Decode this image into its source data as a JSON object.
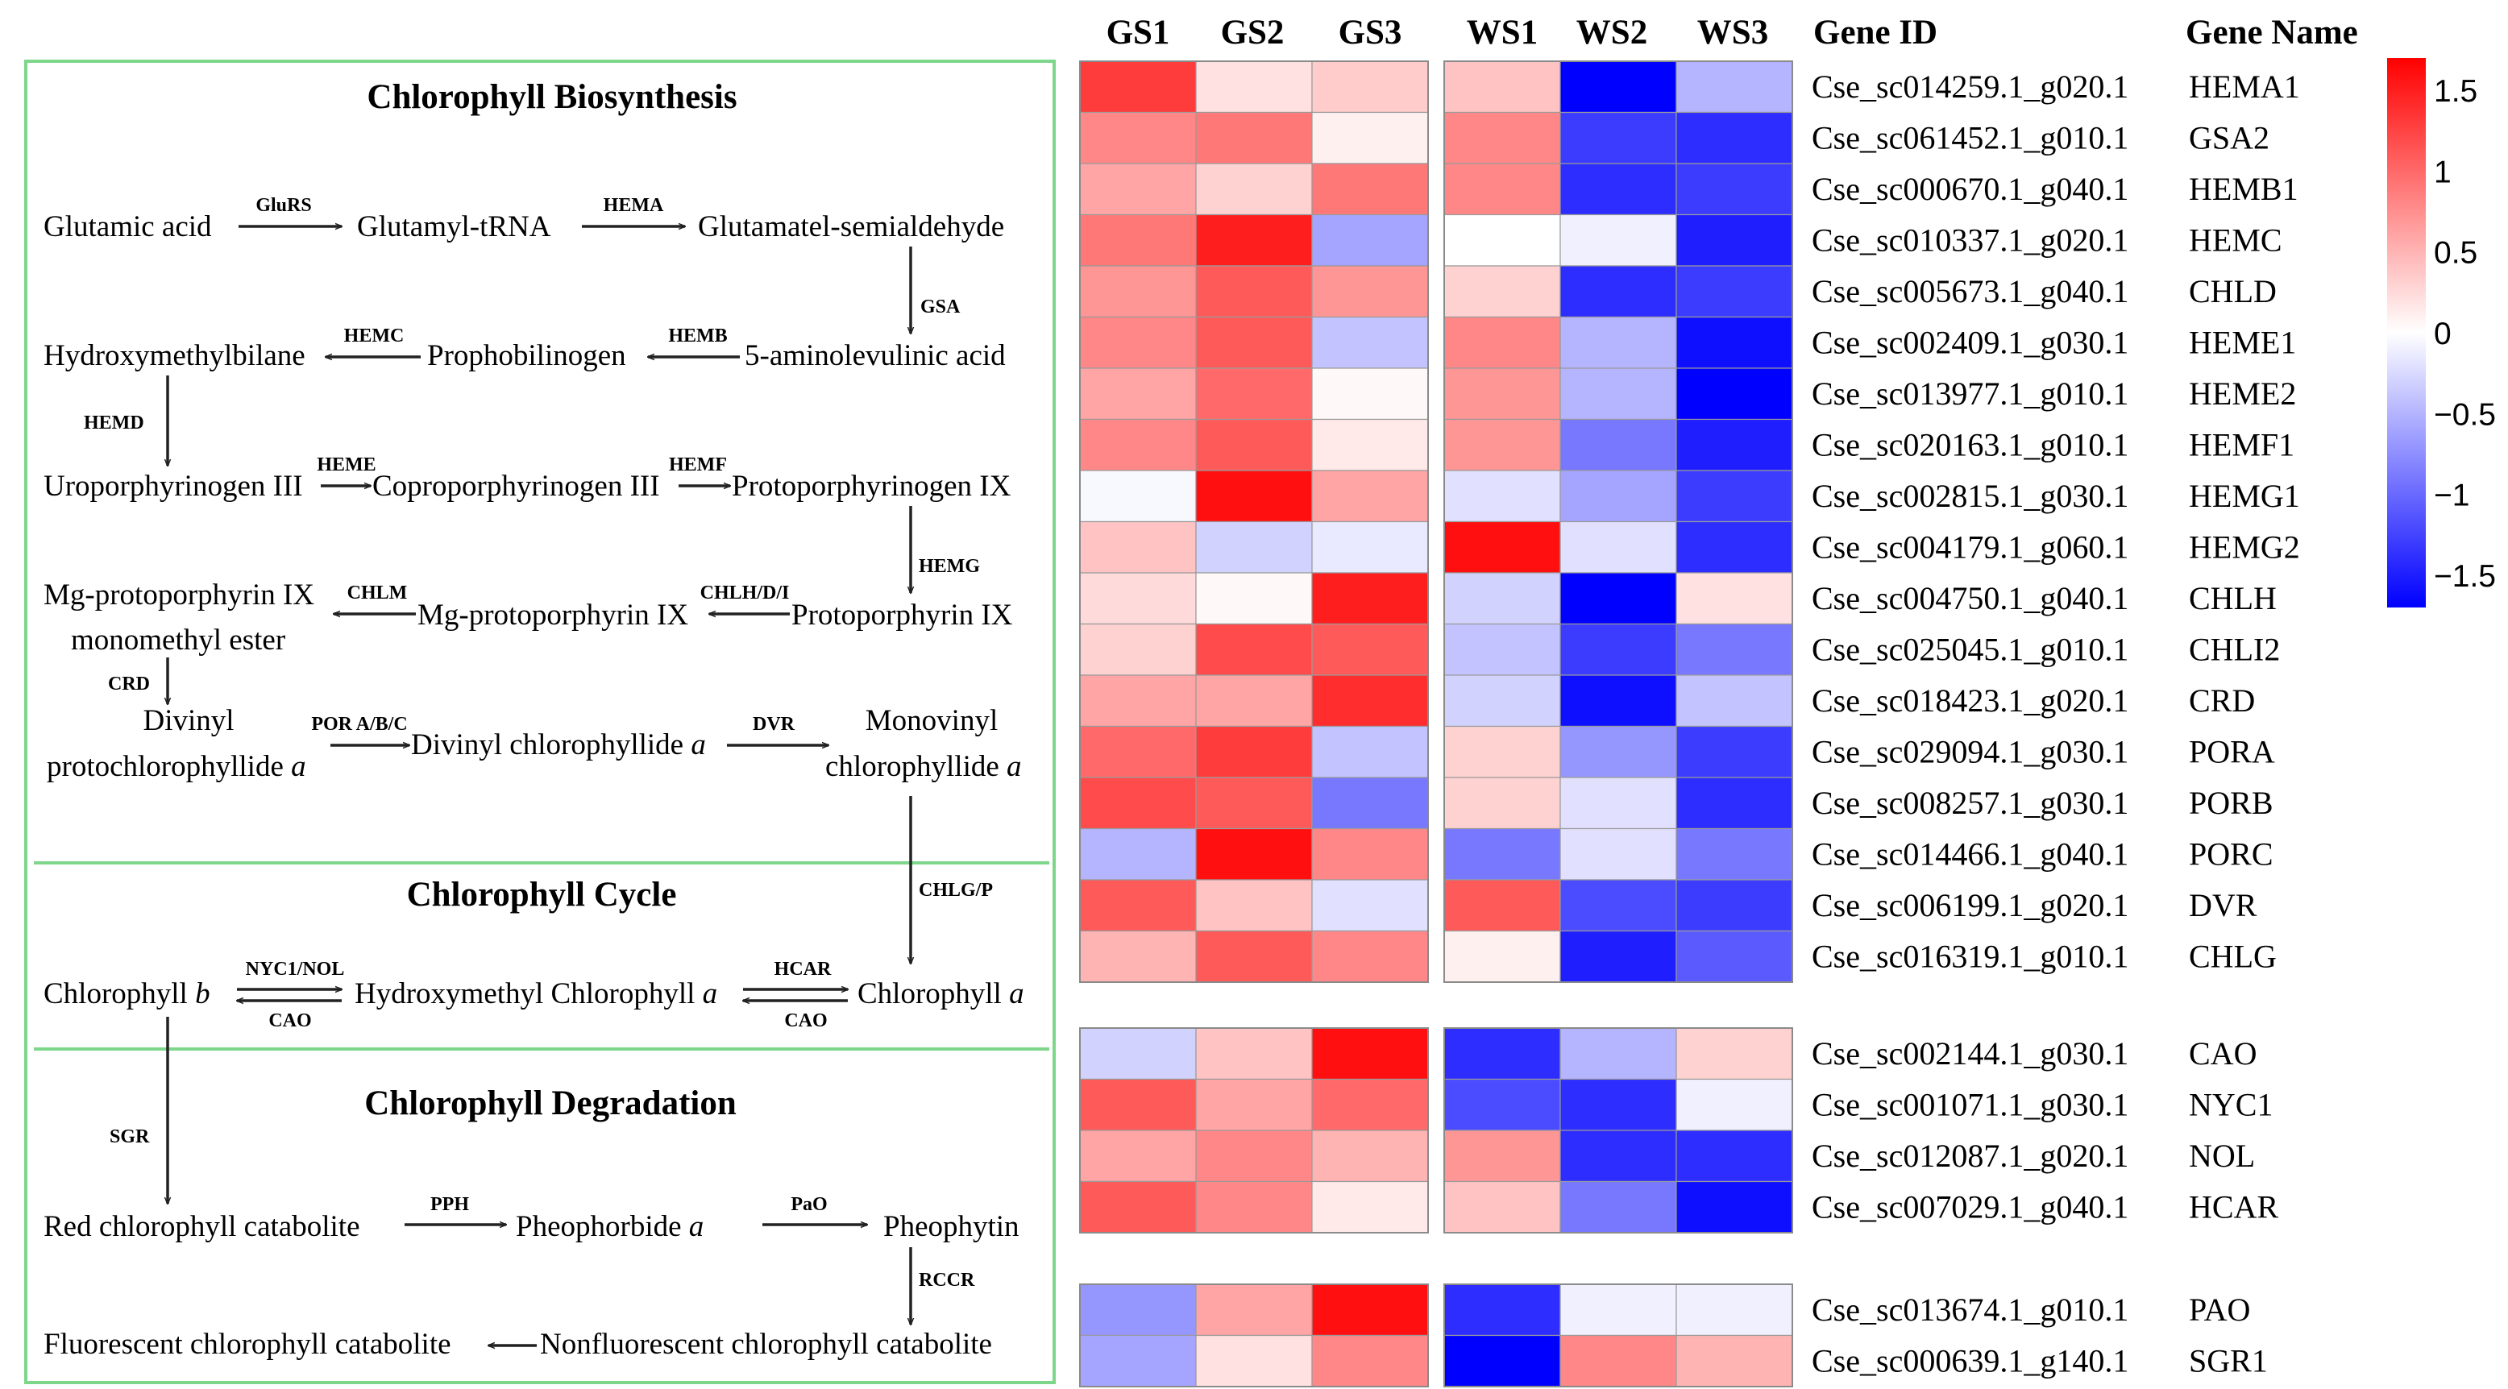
{
  "colors": {
    "high": "#ff0000",
    "mid": "#ffffff",
    "low": "#0000ff",
    "frame": "#7ed68a"
  },
  "pathway": {
    "sections": {
      "biosynthesis": "Chlorophyll Biosynthesis",
      "cycle": "Chlorophyll Cycle",
      "degradation": "Chlorophyll Degradation"
    },
    "nodes": {
      "glutamic_acid": "Glutamic acid",
      "glutamyl_trna": "Glutamyl-tRNA",
      "glutamate_semialdehyde": "Glutamatel-semialdehyde",
      "ala": "5-aminolevulinic acid",
      "prophobilinogen": "Prophobilinogen",
      "hydroxymethylbilane": "Hydroxymethylbilane",
      "uroporphyrinogen": "Uroporphyrinogen III",
      "coproporphyrinogen": "Coproporphyrinogen III",
      "protoporphyrinogen": "Protoporphyrinogen IX",
      "protoporphyrin": "Protoporphyrin IX",
      "mg_protoporphyrin": "Mg-protoporphyrin IX",
      "mg_ester_1": "Mg-protoporphyrin IX",
      "mg_ester_2": "monomethyl ester",
      "divinyl_pchl_1": "Divinyl",
      "divinyl_pchl_2": "protochlorophyllide",
      "italic_a": "a",
      "divinyl_chlide": "Divinyl chlorophyllide ",
      "monovinyl_1": "Monovinyl",
      "monovinyl_2": "chlorophyllide ",
      "chl_b": "Chlorophyll ",
      "italic_b": "b",
      "hydroxymethyl_chl": "Hydroxymethyl Chlorophyll ",
      "chl_a": "Chlorophyll ",
      "rcc": "Red chlorophyll catabolite",
      "pheophorbide": "Pheophorbide ",
      "pheophytin": "Pheophytin",
      "fcc": "Fluorescent chlorophyll catabolite",
      "ncc": "Nonfluorescent chlorophyll catabolite"
    },
    "enzymes": {
      "glurs": "GluRS",
      "hema": "HEMA",
      "gsa": "GSA",
      "hemb": "HEMB",
      "hemc": "HEMC",
      "hemd": "HEMD",
      "heme": "HEME",
      "hemf": "HEMF",
      "hemg": "HEMG",
      "chlhdi": "CHLH/D/I",
      "chlm": "CHLM",
      "crd": "CRD",
      "por": "POR A/B/C",
      "dvr": "DVR",
      "chlgp": "CHLG/P",
      "nyc1nol": "NYC1/NOL",
      "cao": "CAO",
      "hcar": "HCAR",
      "cao2": "CAO",
      "sgr": "SGR",
      "pph": "PPH",
      "pao": "PaO",
      "rccr": "RCCR"
    }
  },
  "heatmap": {
    "groups_left": [
      "GS1",
      "GS2",
      "GS3"
    ],
    "groups_right": [
      "WS1",
      "WS2",
      "WS3"
    ],
    "header_gene_id": "Gene ID",
    "header_gene_name": "Gene Name",
    "scale_min": -1.7,
    "scale_max": 1.7,
    "blocks": [
      {
        "rows": [
          {
            "gene_id": "Cse_sc014259.1_g020.1",
            "gene_name": "HEMA1",
            "values": [
              1.3,
              0.2,
              0.35,
              0.4,
              -1.7,
              -0.5
            ]
          },
          {
            "gene_id": "Cse_sc061452.1_g010.1",
            "gene_name": "GSA2",
            "values": [
              0.8,
              0.9,
              0.1,
              0.8,
              -1.3,
              -1.4
            ]
          },
          {
            "gene_id": "Cse_sc000670.1_g040.1",
            "gene_name": "HEMB1",
            "values": [
              0.6,
              0.3,
              0.9,
              0.8,
              -1.4,
              -1.3
            ]
          },
          {
            "gene_id": "Cse_sc010337.1_g020.1",
            "gene_name": "HEMC",
            "values": [
              0.9,
              1.5,
              -0.6,
              0.0,
              -0.1,
              -1.5
            ]
          },
          {
            "gene_id": "Cse_sc005673.1_g040.1",
            "gene_name": "CHLD",
            "values": [
              0.7,
              1.1,
              0.7,
              0.3,
              -1.4,
              -1.3
            ]
          },
          {
            "gene_id": "Cse_sc002409.1_g030.1",
            "gene_name": "HEME1",
            "values": [
              0.8,
              1.1,
              -0.4,
              0.8,
              -0.5,
              -1.6
            ]
          },
          {
            "gene_id": "Cse_sc013977.1_g010.1",
            "gene_name": "HEME2",
            "values": [
              0.6,
              1.0,
              0.05,
              0.7,
              -0.5,
              -1.7
            ]
          },
          {
            "gene_id": "Cse_sc020163.1_g010.1",
            "gene_name": "HEMF1",
            "values": [
              0.8,
              1.1,
              0.15,
              0.7,
              -0.9,
              -1.5
            ]
          },
          {
            "gene_id": "Cse_sc002815.1_g030.1",
            "gene_name": "HEMG1",
            "values": [
              -0.05,
              1.6,
              0.6,
              -0.2,
              -0.6,
              -1.3
            ]
          },
          {
            "gene_id": "Cse_sc004179.1_g060.1",
            "gene_name": "HEMG2",
            "values": [
              0.4,
              -0.3,
              -0.15,
              1.6,
              -0.2,
              -1.4
            ]
          },
          {
            "gene_id": "Cse_sc004750.1_g040.1",
            "gene_name": "CHLH",
            "values": [
              0.25,
              0.05,
              1.5,
              -0.3,
              -1.7,
              0.2
            ]
          },
          {
            "gene_id": "Cse_sc025045.1_g010.1",
            "gene_name": "CHLI2",
            "values": [
              0.3,
              1.2,
              1.1,
              -0.4,
              -1.3,
              -0.9
            ]
          },
          {
            "gene_id": "Cse_sc018423.1_g020.1",
            "gene_name": "CRD",
            "values": [
              0.6,
              0.6,
              1.4,
              -0.3,
              -1.6,
              -0.4
            ]
          },
          {
            "gene_id": "Cse_sc029094.1_g030.1",
            "gene_name": "PORA",
            "values": [
              1.0,
              1.3,
              -0.4,
              0.3,
              -0.7,
              -1.3
            ]
          },
          {
            "gene_id": "Cse_sc008257.1_g030.1",
            "gene_name": "PORB",
            "values": [
              1.2,
              1.1,
              -0.9,
              0.3,
              -0.2,
              -1.4
            ]
          },
          {
            "gene_id": "Cse_sc014466.1_g040.1",
            "gene_name": "PORC",
            "values": [
              -0.5,
              1.6,
              0.8,
              -0.9,
              -0.2,
              -0.9
            ]
          },
          {
            "gene_id": "Cse_sc006199.1_g020.1",
            "gene_name": "DVR",
            "values": [
              1.1,
              0.4,
              -0.2,
              1.1,
              -1.2,
              -1.3
            ]
          },
          {
            "gene_id": "Cse_sc016319.1_g010.1",
            "gene_name": "CHLG",
            "values": [
              0.5,
              1.1,
              0.8,
              0.1,
              -1.5,
              -1.1
            ]
          }
        ]
      },
      {
        "rows": [
          {
            "gene_id": "Cse_sc002144.1_g030.1",
            "gene_name": "CAO",
            "values": [
              -0.3,
              0.4,
              1.6,
              -1.4,
              -0.5,
              0.3
            ]
          },
          {
            "gene_id": "Cse_sc001071.1_g030.1",
            "gene_name": "NYC1",
            "values": [
              1.1,
              0.6,
              1.0,
              -1.2,
              -1.4,
              -0.1
            ]
          },
          {
            "gene_id": "Cse_sc012087.1_g020.1",
            "gene_name": "NOL",
            "values": [
              0.6,
              0.8,
              0.5,
              0.7,
              -1.4,
              -1.4
            ]
          },
          {
            "gene_id": "Cse_sc007029.1_g040.1",
            "gene_name": "HCAR",
            "values": [
              1.1,
              0.8,
              0.15,
              0.4,
              -0.9,
              -1.6
            ]
          }
        ]
      },
      {
        "rows": [
          {
            "gene_id": "Cse_sc013674.1_g010.1",
            "gene_name": "PAO",
            "values": [
              -0.7,
              0.6,
              1.6,
              -1.4,
              -0.1,
              -0.1
            ]
          },
          {
            "gene_id": "Cse_sc000639.1_g140.1",
            "gene_name": "SGR1",
            "values": [
              -0.6,
              0.2,
              0.8,
              -1.7,
              0.8,
              0.5
            ]
          }
        ]
      }
    ],
    "legend": {
      "ticks": [
        {
          "label": "1.5",
          "value": 1.5
        },
        {
          "label": "1",
          "value": 1.0
        },
        {
          "label": "0.5",
          "value": 0.5
        },
        {
          "label": "0",
          "value": 0.0
        },
        {
          "label": "−0.5",
          "value": -0.5
        },
        {
          "label": "−1",
          "value": -1.0
        },
        {
          "label": "−1.5",
          "value": -1.5
        }
      ]
    }
  }
}
